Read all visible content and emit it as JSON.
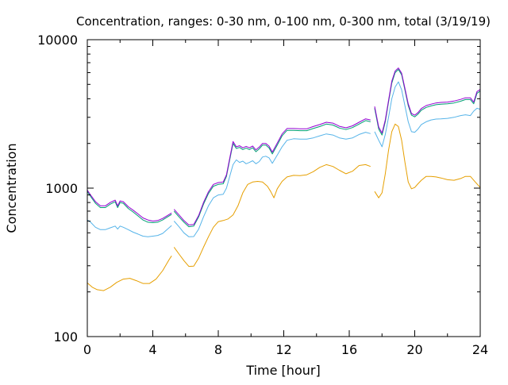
{
  "chart_data": {
    "type": "line",
    "title": "Concentration, ranges: 0-30 nm, 0-100 nm, 0-300 nm, total (3/19/19)",
    "xlabel": "Time [hour]",
    "ylabel": "Concentration",
    "xlim": [
      0,
      24
    ],
    "ylim": [
      100,
      10000
    ],
    "yscale": "log",
    "grid": false,
    "legend": "none",
    "x_ticks": [
      0,
      4,
      8,
      12,
      16,
      20,
      24
    ],
    "x_tick_labels": [
      "0",
      "4",
      "8",
      "12",
      "16",
      "20",
      "24"
    ],
    "y_ticks": [
      100,
      1000,
      10000
    ],
    "y_tick_labels": [
      "100",
      "1000",
      "10000"
    ],
    "colors": [
      "#e69f00",
      "#56b4e9",
      "#009e73",
      "#9400d3"
    ],
    "series": [
      {
        "segments": [
          {
            "x": [
              0,
              0.3,
              0.6,
              1.0,
              1.4,
              1.8,
              2.2,
              2.6,
              3.0,
              3.4,
              3.8,
              4.2,
              4.6,
              5.0,
              5.15
            ],
            "y": [
              230,
              215,
              207,
              204,
              215,
              232,
              244,
              247,
              238,
              228,
              228,
              244,
              278,
              330,
              350
            ]
          },
          {
            "x": [
              5.3,
              5.6,
              5.9,
              6.2,
              6.5,
              6.8,
              7.1,
              7.4,
              7.7,
              8.0,
              8.3,
              8.6,
              8.9,
              9.2,
              9.5,
              9.8,
              10.1,
              10.4,
              10.7,
              11.0,
              11.2,
              11.4,
              11.6,
              11.9,
              12.2,
              12.6,
              13.0,
              13.4,
              13.8,
              14.2,
              14.6,
              15.0,
              15.4,
              15.8,
              16.2,
              16.6,
              17.0,
              17.3
            ],
            "y": [
              400,
              360,
              325,
              297,
              298,
              338,
              400,
              470,
              545,
              595,
              605,
              620,
              660,
              760,
              930,
              1060,
              1100,
              1110,
              1100,
              1030,
              950,
              860,
              990,
              1110,
              1190,
              1220,
              1215,
              1230,
              1290,
              1380,
              1440,
              1400,
              1320,
              1250,
              1300,
              1420,
              1440,
              1400
            ]
          },
          {
            "x": [
              17.55,
              17.8,
              18.0,
              18.2,
              18.4,
              18.6,
              18.8,
              19.0,
              19.2,
              19.4,
              19.6,
              19.8,
              20.0,
              20.2,
              20.4,
              20.7,
              21.0,
              21.3,
              21.6,
              22.0,
              22.4,
              22.8,
              23.1,
              23.4,
              23.7,
              24.0
            ],
            "y": [
              950,
              860,
              930,
              1250,
              1800,
              2400,
              2700,
              2600,
              2100,
              1500,
              1100,
              990,
              1010,
              1070,
              1130,
              1200,
              1200,
              1190,
              1170,
              1140,
              1130,
              1160,
              1200,
              1200,
              1100,
              1010
            ]
          }
        ]
      },
      {
        "segments": [
          {
            "x": [
              0,
              0.2,
              0.5,
              0.8,
              1.1,
              1.4,
              1.7,
              1.85,
              2.0,
              2.2,
              2.5,
              2.8,
              3.1,
              3.4,
              3.7,
              4.0,
              4.3,
              4.6,
              4.9,
              5.15
            ],
            "y": [
              610,
              590,
              545,
              525,
              525,
              540,
              555,
              530,
              555,
              545,
              525,
              505,
              490,
              475,
              470,
              475,
              480,
              495,
              530,
              560
            ]
          },
          {
            "x": [
              5.3,
              5.6,
              5.9,
              6.2,
              6.5,
              6.8,
              7.1,
              7.4,
              7.7,
              8.0,
              8.3,
              8.5,
              8.7,
              8.9,
              9.1,
              9.3,
              9.5,
              9.7,
              9.9,
              10.1,
              10.3,
              10.5,
              10.7,
              10.9,
              11.1,
              11.3,
              11.6,
              11.9,
              12.2,
              12.6,
              13.0,
              13.4,
              13.8,
              14.2,
              14.6,
              15.0,
              15.4,
              15.8,
              16.2,
              16.6,
              17.0,
              17.3
            ],
            "y": [
              600,
              550,
              500,
              470,
              472,
              530,
              640,
              760,
              860,
              900,
              910,
              1000,
              1200,
              1440,
              1550,
              1490,
              1520,
              1460,
              1490,
              1530,
              1460,
              1510,
              1620,
              1640,
              1600,
              1470,
              1670,
              1900,
              2100,
              2150,
              2140,
              2140,
              2180,
              2250,
              2320,
              2280,
              2180,
              2140,
              2180,
              2300,
              2380,
              2330
            ]
          },
          {
            "x": [
              17.55,
              17.8,
              18.0,
              18.2,
              18.4,
              18.6,
              18.8,
              19.0,
              19.2,
              19.4,
              19.6,
              19.8,
              20.0,
              20.2,
              20.4,
              20.7,
              21.0,
              21.3,
              21.6,
              22.0,
              22.4,
              22.8,
              23.1,
              23.4,
              23.6,
              23.8,
              24.0
            ],
            "y": [
              2400,
              2100,
              1900,
              2300,
              3000,
              4000,
              4800,
              5200,
              4600,
              3600,
              2800,
              2400,
              2380,
              2500,
              2680,
              2800,
              2880,
              2920,
              2930,
              2950,
              3000,
              3080,
              3120,
              3080,
              3300,
              3450,
              3400
            ]
          }
        ]
      },
      {
        "segments": [
          {
            "x": [
              0,
              0.2,
              0.5,
              0.8,
              1.1,
              1.4,
              1.7,
              1.85,
              2.0,
              2.2,
              2.5,
              2.8,
              3.1,
              3.4,
              3.7,
              4.0,
              4.3,
              4.6,
              4.9,
              5.15
            ],
            "y": [
              950,
              880,
              790,
              740,
              740,
              780,
              810,
              740,
              800,
              790,
              730,
              690,
              650,
              610,
              590,
              585,
              590,
              610,
              640,
              665
            ]
          },
          {
            "x": [
              5.3,
              5.6,
              5.9,
              6.2,
              6.5,
              6.8,
              7.1,
              7.4,
              7.7,
              8.0,
              8.3,
              8.5,
              8.7,
              8.9,
              9.1,
              9.3,
              9.5,
              9.7,
              9.9,
              10.1,
              10.3,
              10.5,
              10.7,
              10.9,
              11.1,
              11.3,
              11.6,
              11.9,
              12.2,
              12.6,
              13.0,
              13.4,
              13.8,
              14.2,
              14.6,
              15.0,
              15.4,
              15.8,
              16.2,
              16.6,
              17.0,
              17.3
            ],
            "y": [
              700,
              640,
              590,
              550,
              555,
              640,
              780,
              920,
              1030,
              1060,
              1070,
              1200,
              1550,
              2000,
              1850,
              1880,
              1820,
              1860,
              1820,
              1870,
              1760,
              1840,
              1950,
              1950,
              1870,
              1700,
              1950,
              2250,
              2450,
              2450,
              2440,
              2440,
              2520,
              2600,
              2700,
              2660,
              2540,
              2480,
              2560,
              2700,
              2850,
              2800
            ]
          },
          {
            "x": [
              17.55,
              17.8,
              18.0,
              18.2,
              18.4,
              18.6,
              18.8,
              19.0,
              19.2,
              19.4,
              19.6,
              19.8,
              20.0,
              20.2,
              20.4,
              20.7,
              21.0,
              21.3,
              21.6,
              22.0,
              22.4,
              22.8,
              23.1,
              23.4,
              23.6,
              23.8,
              24.0
            ],
            "y": [
              3450,
              2500,
              2280,
              2800,
              3800,
              5100,
              6000,
              6300,
              5800,
              4600,
              3600,
              3100,
              3020,
              3150,
              3350,
              3500,
              3580,
              3650,
              3680,
              3700,
              3750,
              3850,
              3950,
              3950,
              3700,
              4350,
              4500
            ]
          }
        ]
      },
      {
        "segments": [
          {
            "x": [
              0,
              0.2,
              0.5,
              0.8,
              1.1,
              1.4,
              1.7,
              1.85,
              2.0,
              2.2,
              2.5,
              2.8,
              3.1,
              3.4,
              3.7,
              4.0,
              4.3,
              4.6,
              4.9,
              5.15
            ],
            "y": [
              970,
              900,
              810,
              760,
              760,
              800,
              830,
              760,
              820,
              810,
              750,
              710,
              670,
              630,
              610,
              600,
              605,
              625,
              655,
              680
            ]
          },
          {
            "x": [
              5.3,
              5.6,
              5.9,
              6.2,
              6.5,
              6.8,
              7.1,
              7.4,
              7.7,
              8.0,
              8.3,
              8.5,
              8.7,
              8.9,
              9.1,
              9.3,
              9.5,
              9.7,
              9.9,
              10.1,
              10.3,
              10.5,
              10.7,
              10.9,
              11.1,
              11.3,
              11.6,
              11.9,
              12.2,
              12.6,
              13.0,
              13.4,
              13.8,
              14.2,
              14.6,
              15.0,
              15.4,
              15.8,
              16.2,
              16.6,
              17.0,
              17.3
            ],
            "y": [
              720,
              660,
              605,
              565,
              570,
              655,
              800,
              945,
              1060,
              1090,
              1100,
              1230,
              1590,
              2060,
              1900,
              1930,
              1870,
              1910,
              1870,
              1920,
              1810,
              1890,
              2000,
              2000,
              1920,
              1750,
              2010,
              2320,
              2520,
              2520,
              2510,
              2510,
              2600,
              2680,
              2780,
              2740,
              2610,
              2550,
              2630,
              2780,
              2930,
              2880
            ]
          },
          {
            "x": [
              17.55,
              17.8,
              18.0,
              18.2,
              18.4,
              18.6,
              18.8,
              19.0,
              19.2,
              19.4,
              19.6,
              19.8,
              20.0,
              20.2,
              20.4,
              20.7,
              21.0,
              21.3,
              21.6,
              22.0,
              22.4,
              22.8,
              23.1,
              23.4,
              23.6,
              23.8,
              24.0
            ],
            "y": [
              3550,
              2580,
              2350,
              2880,
              3900,
              5250,
              6150,
              6450,
              5950,
              4720,
              3700,
              3180,
              3100,
              3230,
              3440,
              3600,
              3680,
              3750,
              3780,
              3800,
              3860,
              3960,
              4060,
              4060,
              3800,
              4470,
              4620
            ]
          }
        ]
      }
    ]
  }
}
